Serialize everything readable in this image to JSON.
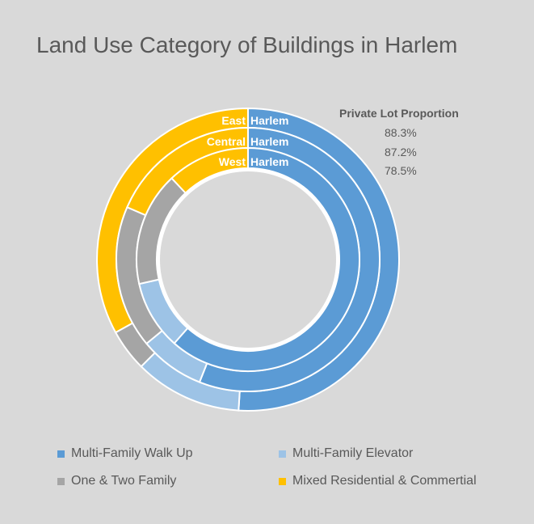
{
  "chart_data": {
    "type": "donut",
    "title": "Land Use Category of Buildings in Harlem",
    "categories": [
      "Multi-Family Walk Up",
      "Multi-Family Elevator",
      "One & Two Family",
      "Mixed Residential & Commertial"
    ],
    "colors": [
      "#5b9bd5",
      "#9dc3e6",
      "#a5a5a5",
      "#ffc000"
    ],
    "series": [
      {
        "name": "East Harlem",
        "values": [
          51.0,
          11.5,
          4.5,
          33.0
        ]
      },
      {
        "name": "Central Harlem",
        "values": [
          56.0,
          8.0,
          17.5,
          18.5
        ]
      },
      {
        "name": "West Harlem",
        "values": [
          61.5,
          10.0,
          16.5,
          12.0
        ]
      }
    ],
    "ring_labels": [
      {
        "prefix": "East",
        "suffix": "Harlem"
      },
      {
        "prefix": "Central",
        "suffix": "Harlem"
      },
      {
        "prefix": "West",
        "suffix": "Harlem"
      }
    ],
    "side_panel": {
      "title": "Private Lot Proportion",
      "values": [
        "88.3%",
        "87.2%",
        "78.5%"
      ]
    },
    "legend": [
      "Multi-Family Walk Up",
      "Multi-Family Elevator",
      "One & Two Family",
      "Mixed Residential & Commertial"
    ],
    "legend_position": "bottom"
  }
}
